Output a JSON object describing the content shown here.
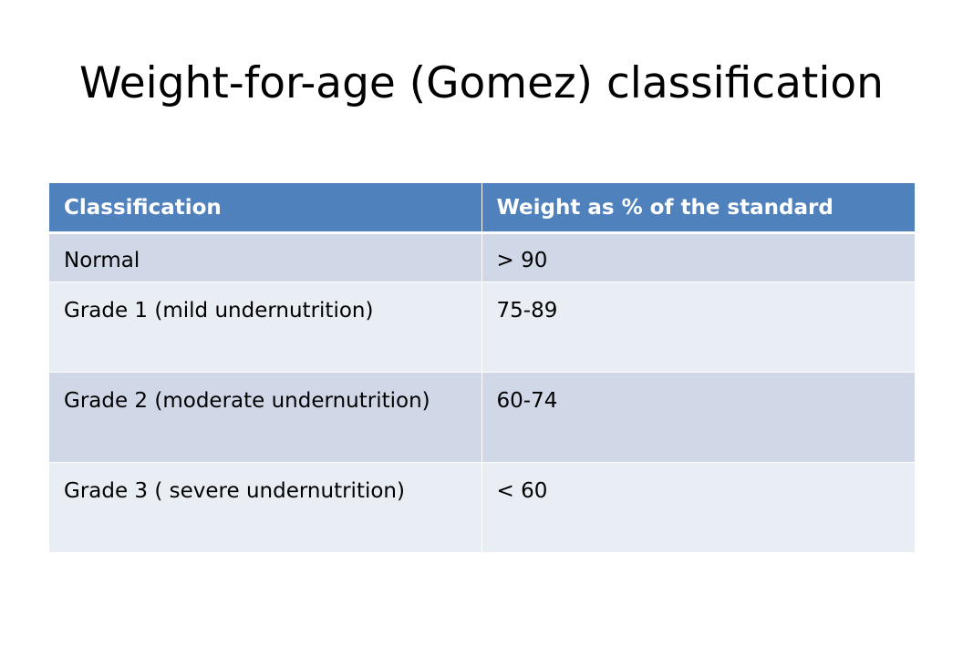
{
  "slide": {
    "title": "Weight-for-age (Gomez) classification"
  },
  "table": {
    "headers": [
      "Classification",
      "Weight as % of the standard"
    ],
    "rows": [
      [
        "Normal",
        "> 90"
      ],
      [
        "Grade 1 (mild undernutrition)",
        "75-89"
      ],
      [
        "Grade 2 (moderate undernutrition)",
        "60-74"
      ],
      [
        "Grade 3 ( severe undernutrition)",
        "< 60"
      ]
    ],
    "colors": {
      "header_bg": "#4f81bd",
      "row_dark": "#d0d8e8",
      "row_light": "#e9edf4"
    }
  }
}
